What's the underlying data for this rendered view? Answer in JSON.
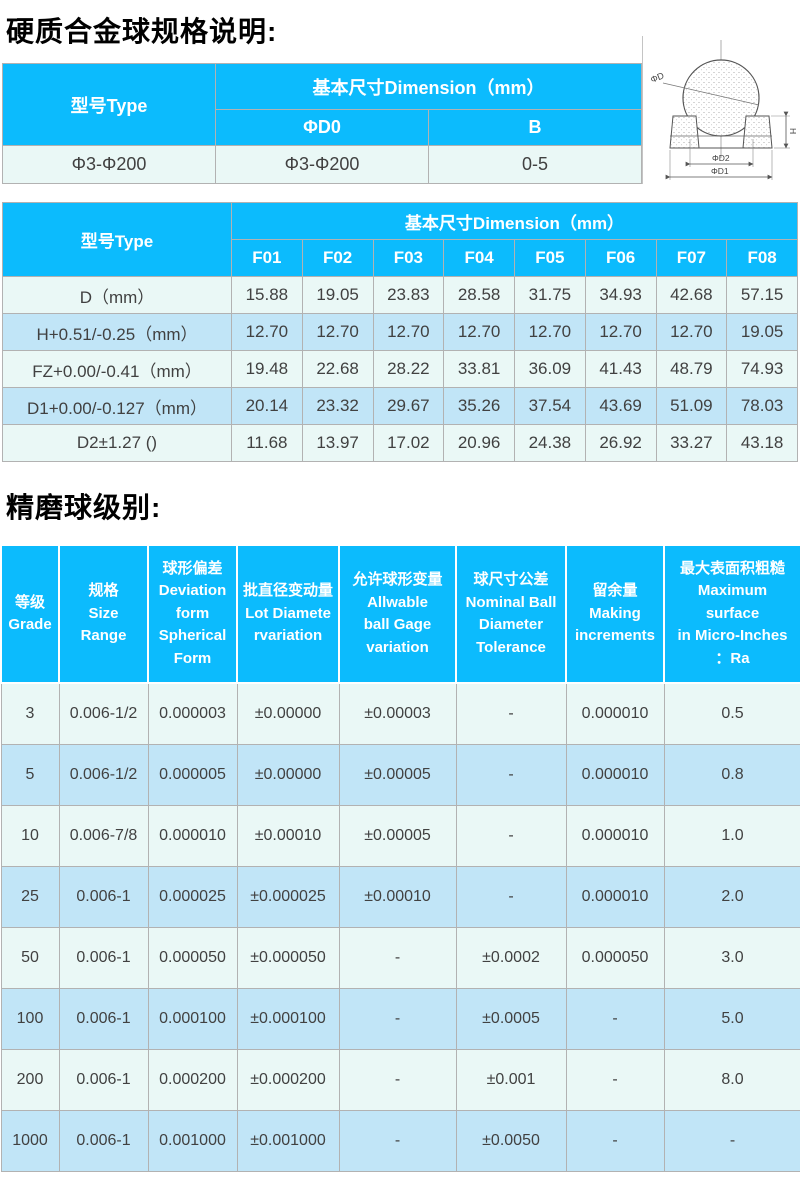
{
  "colors": {
    "accent": "#0cbbfd",
    "row_light": "#eaf8f6",
    "row_blue": "#c1e5f7",
    "border": "#b2b2b2",
    "text": "#414141"
  },
  "page": {
    "title1": "硬质合金球规格说明:",
    "title2": "精磨球级别:"
  },
  "table1": {
    "header": {
      "type": "型号Type",
      "dimension_group": "基本尺寸Dimension（mm）",
      "d0": "ΦD0",
      "b": "B"
    },
    "row": {
      "type": "Φ3-Φ200",
      "d0": "Φ3-Φ200",
      "b": "0-5"
    }
  },
  "diagram": {
    "labels": {
      "d": "ΦD",
      "d2": "ΦD2",
      "d1": "ΦD1",
      "h": "H"
    }
  },
  "table2": {
    "header": {
      "type": "型号Type",
      "dimension_group": "基本尺寸Dimension（mm）",
      "models": [
        "F01",
        "F02",
        "F03",
        "F04",
        "F05",
        "F06",
        "F07",
        "F08"
      ]
    },
    "rows": [
      {
        "label": "D（mm）",
        "values": [
          "15.88",
          "19.05",
          "23.83",
          "28.58",
          "31.75",
          "34.93",
          "42.68",
          "57.15"
        ]
      },
      {
        "label": "H+0.51/-0.25（mm）",
        "values": [
          "12.70",
          "12.70",
          "12.70",
          "12.70",
          "12.70",
          "12.70",
          "12.70",
          "19.05"
        ]
      },
      {
        "label": "FZ+0.00/-0.41（mm）",
        "values": [
          "19.48",
          "22.68",
          "28.22",
          "33.81",
          "36.09",
          "41.43",
          "48.79",
          "74.93"
        ]
      },
      {
        "label": "D1+0.00/-0.127（mm）",
        "values": [
          "20.14",
          "23.32",
          "29.67",
          "35.26",
          "37.54",
          "43.69",
          "51.09",
          "78.03"
        ]
      },
      {
        "label": "D2±1.27 ()",
        "values": [
          "11.68",
          "13.97",
          "17.02",
          "20.96",
          "24.38",
          "26.92",
          "33.27",
          "43.18"
        ]
      }
    ]
  },
  "table3": {
    "headers": [
      "等级\nGrade",
      "规格\nSize\nRange",
      "球形偏差\nDeviation\nform\nSpherical\nForm",
      "批直径变动量\nLot Diamete\nrvariation",
      "允许球形变量\nAllwable\nball Gage\nvariation",
      "球尺寸公差\nNominal Ball\nDiameter\nTolerance",
      "留余量\nMaking\nincrements",
      "最大表面积粗糙\nMaximum\nsurface\nin Micro-Inches\n：Ra"
    ],
    "rows": [
      [
        "3",
        "0.006-1/2",
        "0.000003",
        "±0.00000",
        "±0.00003",
        "-",
        "0.000010",
        "0.5"
      ],
      [
        "5",
        "0.006-1/2",
        "0.000005",
        "±0.00000",
        "±0.00005",
        "-",
        "0.000010",
        "0.8"
      ],
      [
        "10",
        "0.006-7/8",
        "0.000010",
        "±0.00010",
        "±0.00005",
        "-",
        "0.000010",
        "1.0"
      ],
      [
        "25",
        "0.006-1",
        "0.000025",
        "±0.000025",
        "±0.00010",
        "-",
        "0.000010",
        "2.0"
      ],
      [
        "50",
        "0.006-1",
        "0.000050",
        "±0.000050",
        "-",
        "±0.0002",
        "0.000050",
        "3.0"
      ],
      [
        "100",
        "0.006-1",
        "0.000100",
        "±0.000100",
        "-",
        "±0.0005",
        "-",
        "5.0"
      ],
      [
        "200",
        "0.006-1",
        "0.000200",
        "±0.000200",
        "-",
        "±0.001",
        "-",
        "8.0"
      ],
      [
        "1000",
        "0.006-1",
        "0.001000",
        "±0.001000",
        "-",
        "±0.0050",
        "-",
        "-"
      ]
    ]
  }
}
